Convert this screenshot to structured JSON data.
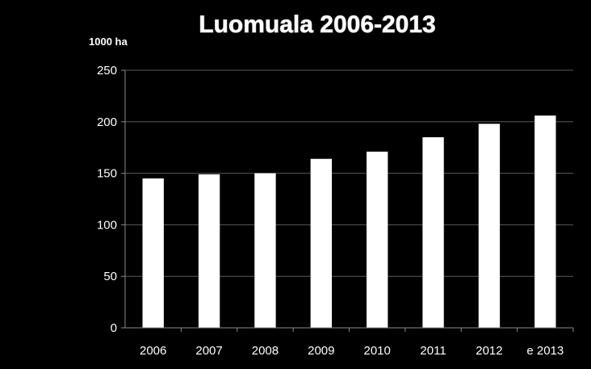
{
  "chart_data": {
    "type": "bar",
    "title": "Luomuala 2006-2013",
    "unit_label": "1000 ha",
    "categories": [
      "2006",
      "2007",
      "2008",
      "2009",
      "2010",
      "2011",
      "2012",
      "e 2013"
    ],
    "values": [
      145,
      149,
      150,
      164,
      171,
      185,
      198,
      206
    ],
    "ylim": [
      0,
      250
    ],
    "yticks": [
      0,
      50,
      100,
      150,
      200,
      250
    ],
    "grid": true,
    "colors": {
      "background": "#000000",
      "bars": "#ffffff",
      "text": "#ffffff"
    }
  }
}
